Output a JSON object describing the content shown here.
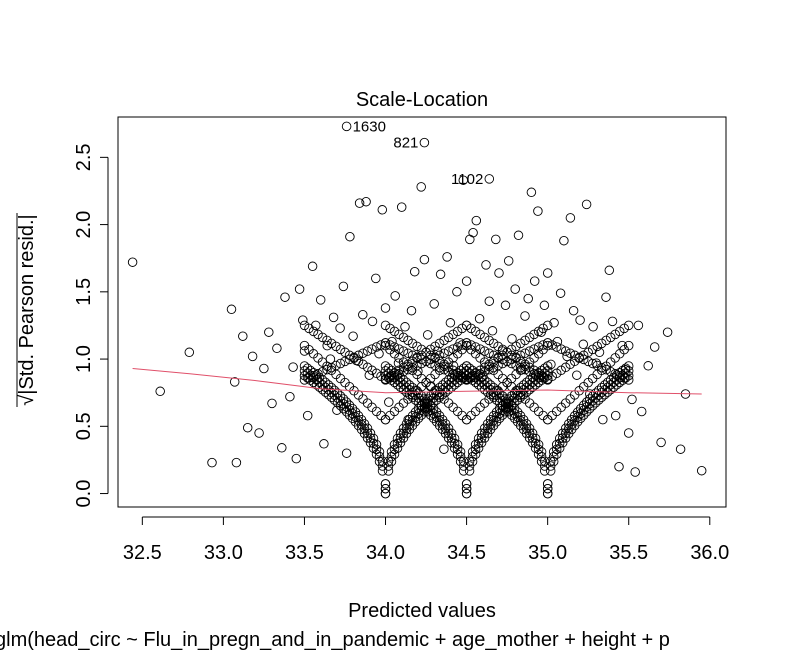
{
  "chart_data": {
    "type": "scatter",
    "title": "Scale-Location",
    "xlabel": "Predicted values",
    "ylabel_root": "√",
    "ylabel": "|Std. Pearson resid.|",
    "subtitle": "glm(head_circ ~ Flu_in_pregn_and_in_pandemic + age_mother + height + p",
    "xlim": [
      32.35,
      36.1
    ],
    "ylim": [
      -0.1,
      2.8
    ],
    "x_ticks": [
      32.5,
      33.0,
      33.5,
      34.0,
      34.5,
      35.0,
      35.5,
      36.0
    ],
    "x_tick_labels": [
      "32.5",
      "33.0",
      "33.5",
      "34.0",
      "34.5",
      "35.0",
      "35.5",
      "36.0"
    ],
    "y_ticks": [
      0.0,
      0.5,
      1.0,
      1.5,
      2.0,
      2.5
    ],
    "y_tick_labels": [
      "0.0",
      "0.5",
      "1.0",
      "1.5",
      "2.0",
      "2.5"
    ],
    "grid": false,
    "point_color": "#000000",
    "smoother_color": "#e0506a",
    "curve_centers": [
      34.0,
      34.5,
      35.0
    ],
    "curve_extent": 0.5,
    "curve_slope": 2.4,
    "curve_offsets": [
      0.0,
      0.18,
      0.36
    ],
    "points_per_arm": 9,
    "labeled_points": [
      {
        "x": 33.76,
        "y": 2.73,
        "label": "1630"
      },
      {
        "x": 34.24,
        "y": 2.61,
        "label": "821"
      },
      {
        "x": 34.64,
        "y": 2.34,
        "label": "1102"
      }
    ],
    "scatter_points": [
      [
        32.44,
        1.72
      ],
      [
        32.61,
        0.76
      ],
      [
        32.79,
        1.05
      ],
      [
        32.93,
        0.23
      ],
      [
        33.05,
        1.37
      ],
      [
        33.07,
        0.83
      ],
      [
        33.08,
        0.23
      ],
      [
        33.12,
        1.17
      ],
      [
        33.15,
        0.49
      ],
      [
        33.18,
        1.02
      ],
      [
        33.22,
        0.45
      ],
      [
        33.25,
        0.93
      ],
      [
        33.28,
        1.2
      ],
      [
        33.3,
        0.67
      ],
      [
        33.33,
        1.08
      ],
      [
        33.36,
        0.34
      ],
      [
        33.38,
        1.46
      ],
      [
        33.41,
        0.72
      ],
      [
        33.43,
        0.94
      ],
      [
        33.45,
        0.26
      ],
      [
        33.47,
        1.52
      ],
      [
        33.49,
        1.29
      ],
      [
        33.5,
        1.06
      ],
      [
        33.52,
        0.58
      ],
      [
        33.55,
        1.69
      ],
      [
        33.57,
        1.25
      ],
      [
        33.58,
        0.85
      ],
      [
        33.6,
        1.44
      ],
      [
        33.62,
        0.37
      ],
      [
        33.64,
        1.1
      ],
      [
        33.66,
        1.0
      ],
      [
        33.68,
        1.31
      ],
      [
        33.7,
        0.62
      ],
      [
        33.72,
        1.23
      ],
      [
        33.74,
        1.54
      ],
      [
        33.76,
        0.3
      ],
      [
        33.78,
        1.91
      ],
      [
        33.8,
        1.17
      ],
      [
        33.82,
        0.99
      ],
      [
        33.84,
        2.16
      ],
      [
        33.86,
        1.33
      ],
      [
        33.88,
        2.17
      ],
      [
        33.9,
        0.88
      ],
      [
        33.92,
        1.28
      ],
      [
        33.94,
        1.6
      ],
      [
        33.96,
        1.04
      ],
      [
        33.98,
        2.11
      ],
      [
        34.0,
        1.38
      ],
      [
        34.02,
        0.68
      ],
      [
        34.04,
        1.13
      ],
      [
        34.06,
        1.47
      ],
      [
        34.08,
        0.97
      ],
      [
        34.1,
        2.13
      ],
      [
        34.12,
        1.24
      ],
      [
        34.14,
        0.55
      ],
      [
        34.16,
        1.36
      ],
      [
        34.18,
        1.65
      ],
      [
        34.2,
        0.91
      ],
      [
        34.22,
        2.28
      ],
      [
        34.24,
        1.74
      ],
      [
        34.26,
        1.18
      ],
      [
        34.28,
        0.8
      ],
      [
        34.3,
        1.41
      ],
      [
        34.32,
        1.06
      ],
      [
        34.34,
        1.63
      ],
      [
        34.36,
        0.33
      ],
      [
        34.38,
        1.76
      ],
      [
        34.4,
        1.27
      ],
      [
        34.42,
        0.95
      ],
      [
        34.44,
        1.5
      ],
      [
        34.46,
        1.12
      ],
      [
        34.48,
        2.33
      ],
      [
        34.5,
        1.58
      ],
      [
        34.52,
        1.89
      ],
      [
        34.54,
        1.94
      ],
      [
        34.56,
        2.03
      ],
      [
        34.58,
        1.3
      ],
      [
        34.6,
        0.87
      ],
      [
        34.62,
        1.7
      ],
      [
        34.64,
        1.43
      ],
      [
        34.66,
        1.21
      ],
      [
        34.68,
        1.89
      ],
      [
        34.7,
        1.64
      ],
      [
        34.72,
        1.06
      ],
      [
        34.74,
        1.4
      ],
      [
        34.76,
        1.73
      ],
      [
        34.78,
        1.15
      ],
      [
        34.8,
        1.52
      ],
      [
        34.82,
        1.92
      ],
      [
        34.84,
        0.92
      ],
      [
        34.86,
        1.32
      ],
      [
        34.88,
        1.45
      ],
      [
        34.9,
        2.24
      ],
      [
        34.92,
        1.58
      ],
      [
        34.94,
        2.1
      ],
      [
        34.96,
        1.2
      ],
      [
        34.98,
        1.4
      ],
      [
        35.0,
        1.64
      ],
      [
        35.02,
        0.96
      ],
      [
        35.04,
        1.27
      ],
      [
        35.06,
        1.13
      ],
      [
        35.08,
        1.49
      ],
      [
        35.1,
        1.88
      ],
      [
        35.12,
        1.02
      ],
      [
        35.14,
        2.05
      ],
      [
        35.16,
        1.36
      ],
      [
        35.18,
        0.88
      ],
      [
        35.2,
        1.29
      ],
      [
        35.22,
        1.11
      ],
      [
        35.24,
        2.15
      ],
      [
        35.26,
        0.74
      ],
      [
        35.28,
        1.24
      ],
      [
        35.3,
        0.97
      ],
      [
        35.32,
        1.05
      ],
      [
        35.34,
        0.55
      ],
      [
        35.36,
        1.46
      ],
      [
        35.38,
        1.66
      ],
      [
        35.4,
        1.28
      ],
      [
        35.42,
        0.58
      ],
      [
        35.44,
        0.2
      ],
      [
        35.46,
        1.1
      ],
      [
        35.48,
        0.92
      ],
      [
        35.5,
        0.45
      ],
      [
        35.52,
        0.7
      ],
      [
        35.54,
        0.16
      ],
      [
        35.56,
        1.25
      ],
      [
        35.58,
        0.61
      ],
      [
        35.62,
        0.95
      ],
      [
        35.66,
        1.09
      ],
      [
        35.7,
        0.38
      ],
      [
        35.74,
        1.2
      ],
      [
        35.82,
        0.33
      ],
      [
        35.85,
        0.74
      ],
      [
        35.95,
        0.17
      ]
    ],
    "smoother": [
      [
        32.44,
        0.93
      ],
      [
        32.8,
        0.89
      ],
      [
        33.2,
        0.84
      ],
      [
        33.6,
        0.78
      ],
      [
        34.0,
        0.75
      ],
      [
        34.5,
        0.76
      ],
      [
        35.0,
        0.77
      ],
      [
        35.5,
        0.75
      ],
      [
        35.95,
        0.74
      ]
    ]
  }
}
